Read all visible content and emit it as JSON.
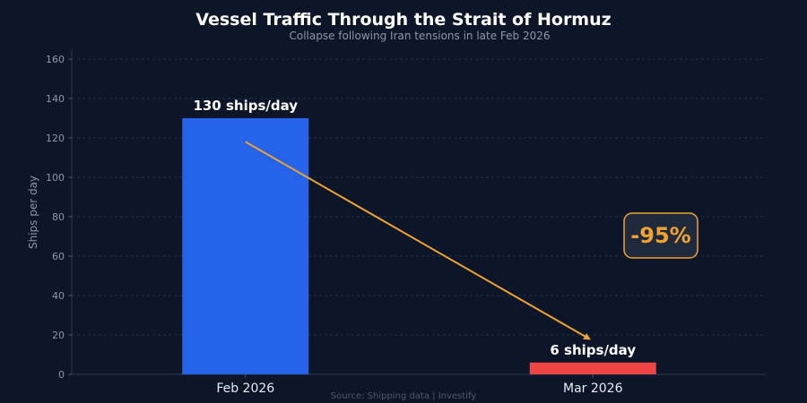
{
  "chart_data": {
    "type": "bar",
    "title": "Vessel Traffic Through the Strait of Hormuz",
    "subtitle": "Collapse following Iran tensions in late Feb 2026",
    "xlabel": "",
    "ylabel": "Ships per day",
    "ylim": [
      0,
      165
    ],
    "yticks": [
      0,
      20,
      40,
      60,
      80,
      100,
      120,
      140,
      160
    ],
    "grid": true,
    "categories": [
      "Feb 2026",
      "Mar 2026"
    ],
    "values": [
      130,
      6
    ],
    "data_labels": [
      "130 ships/day",
      "6 ships/day"
    ],
    "colors": {
      "bars": [
        "#2563eb",
        "#ef4444"
      ],
      "accent": "#f0a22e",
      "background": "#0c1628",
      "grid": "#1e2d47"
    },
    "annotation": {
      "text": "-95%",
      "arrow_from": {
        "category": "Feb 2026",
        "y": 118
      },
      "arrow_to": {
        "category": "Mar 2026",
        "y": 18
      }
    },
    "source": "Source: Shipping data  |  Investify"
  }
}
